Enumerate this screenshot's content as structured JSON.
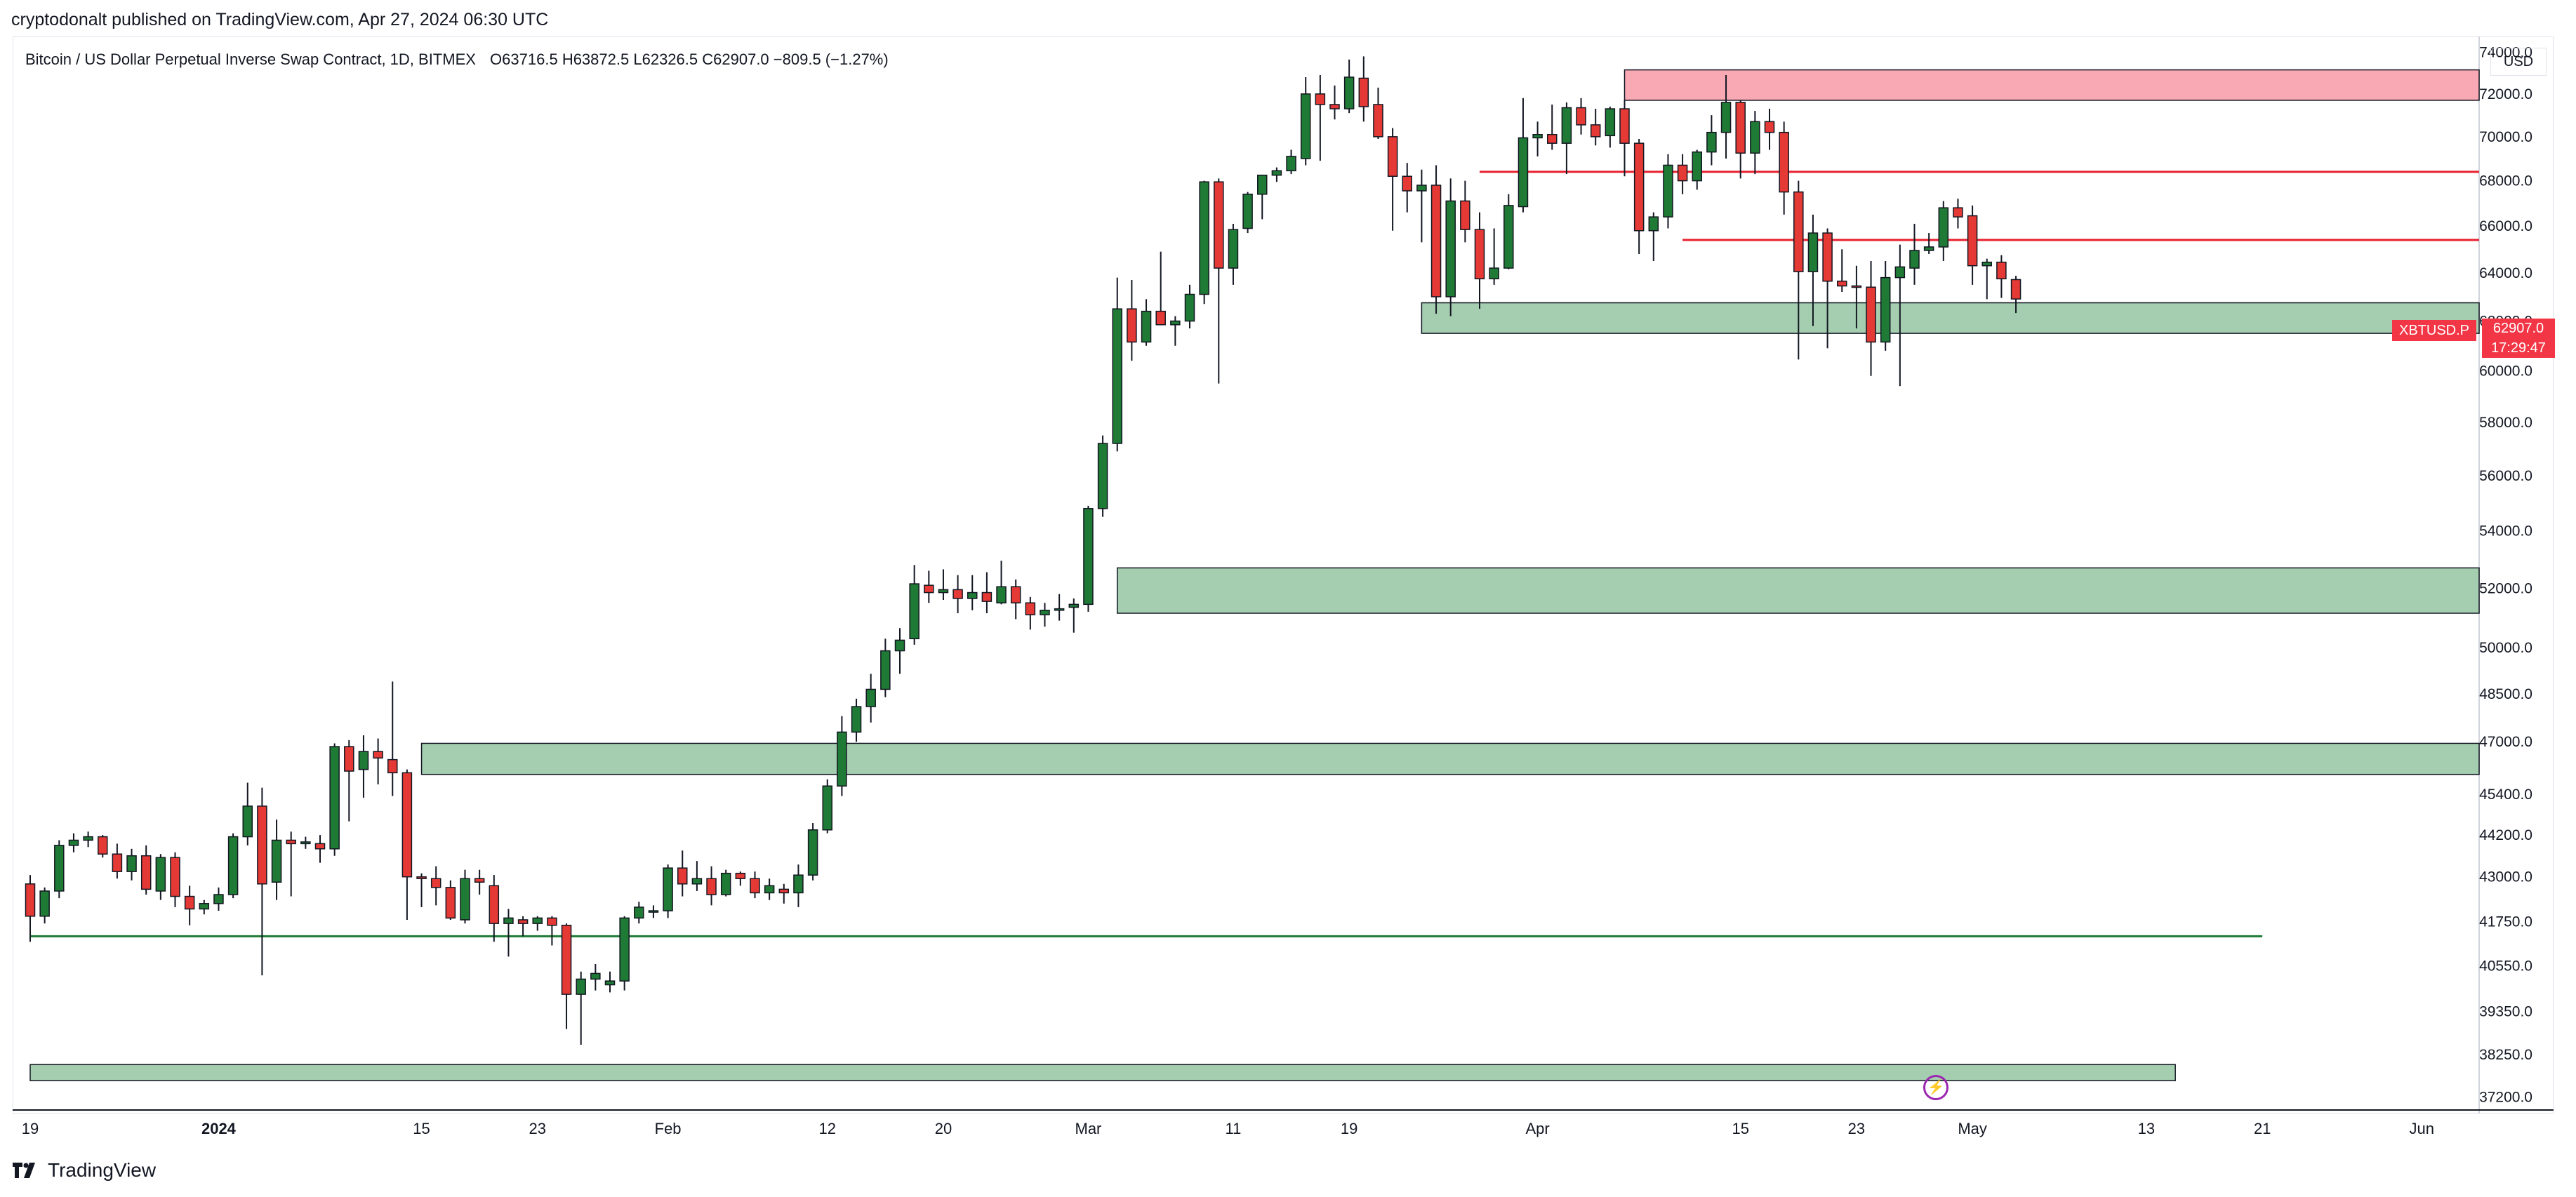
{
  "header": {
    "publisher_line": "cryptodonalt published on TradingView.com, Apr 27, 2024 06:30 UTC"
  },
  "legend": {
    "instrument": "Bitcoin / US Dollar Perpetual Inverse Swap Contract, 1D, BITMEX",
    "open": "O63716.5",
    "high": "H63872.5",
    "low": "L62326.5",
    "close": "C62907.0",
    "change": "−809.5 (−1.27%)"
  },
  "price_scale": {
    "currency": "USD",
    "symbol_tag": "XBTUSD.P",
    "last_price": "62907.0",
    "countdown": "17:29:47"
  },
  "footer": {
    "brand": "TradingView"
  },
  "colors": {
    "up": "#1e7a34",
    "down": "#e53935",
    "zone_green": "#a5cdb0",
    "zone_red": "#f9a9b4",
    "line_red": "#e8202e",
    "line_green": "#1e7a34"
  },
  "chart_data": {
    "type": "candlestick",
    "y_scale": "log",
    "ylim": [
      37000,
      74500
    ],
    "y_ticks": [
      "74000.0",
      "72000.0",
      "70000.0",
      "68000.0",
      "66000.0",
      "64000.0",
      "62000.0",
      "60000.0",
      "58000.0",
      "56000.0",
      "54000.0",
      "52000.0",
      "50000.0",
      "48500.0",
      "47000.0",
      "45400.0",
      "44200.0",
      "43000.0",
      "41750.0",
      "40550.0",
      "39350.0",
      "38250.0",
      "37200.0"
    ],
    "x_ticks": [
      {
        "label": "19",
        "day": 0
      },
      {
        "label": "2024",
        "day": 13,
        "bold": true
      },
      {
        "label": "15",
        "day": 27
      },
      {
        "label": "23",
        "day": 35
      },
      {
        "label": "Feb",
        "day": 44
      },
      {
        "label": "12",
        "day": 55
      },
      {
        "label": "20",
        "day": 63
      },
      {
        "label": "Mar",
        "day": 73
      },
      {
        "label": "11",
        "day": 83
      },
      {
        "label": "19",
        "day": 91
      },
      {
        "label": "Apr",
        "day": 104
      },
      {
        "label": "15",
        "day": 118
      },
      {
        "label": "23",
        "day": 126
      },
      {
        "label": "May",
        "day": 134
      },
      {
        "label": "13",
        "day": 146
      },
      {
        "label": "21",
        "day": 154
      },
      {
        "label": "Jun",
        "day": 165
      }
    ],
    "candles": [
      [
        42800,
        43050,
        41200,
        41900
      ],
      [
        41900,
        42700,
        41700,
        42600
      ],
      [
        42600,
        44050,
        42400,
        43900
      ],
      [
        43900,
        44250,
        43700,
        44050
      ],
      [
        44050,
        44300,
        43850,
        44150
      ],
      [
        44150,
        44200,
        43550,
        43650
      ],
      [
        43650,
        43950,
        42950,
        43150
      ],
      [
        43150,
        43800,
        42900,
        43600
      ],
      [
        43600,
        43900,
        42500,
        42650
      ],
      [
        42600,
        43650,
        42350,
        43550
      ],
      [
        43550,
        43700,
        42150,
        42450
      ],
      [
        42450,
        42750,
        41650,
        42100
      ],
      [
        42100,
        42350,
        41950,
        42250
      ],
      [
        42250,
        42700,
        42050,
        42500
      ],
      [
        42500,
        44250,
        42400,
        44150
      ],
      [
        44150,
        45750,
        43900,
        45050
      ],
      [
        45050,
        45600,
        40300,
        42800
      ],
      [
        42850,
        44650,
        42350,
        44050
      ],
      [
        44050,
        44300,
        42450,
        43950
      ],
      [
        43950,
        44150,
        43800,
        44000
      ],
      [
        43950,
        44200,
        43400,
        43800
      ],
      [
        43800,
        46950,
        43600,
        46850
      ],
      [
        46850,
        47050,
        44600,
        46100
      ],
      [
        46150,
        47200,
        45300,
        46700
      ],
      [
        46700,
        47100,
        45700,
        46500
      ],
      [
        46450,
        48900,
        45350,
        46050
      ],
      [
        46050,
        46150,
        41800,
        43000
      ],
      [
        43000,
        43100,
        42150,
        42950
      ],
      [
        42950,
        43300,
        42200,
        42700
      ],
      [
        42700,
        42900,
        41800,
        41850
      ],
      [
        41800,
        43200,
        41700,
        42950
      ],
      [
        42950,
        43200,
        42500,
        42850
      ],
      [
        42750,
        43050,
        41200,
        41700
      ],
      [
        41700,
        42100,
        40800,
        41850
      ],
      [
        41800,
        41900,
        41350,
        41700
      ],
      [
        41700,
        41900,
        41500,
        41850
      ],
      [
        41850,
        41900,
        41100,
        41650
      ],
      [
        41650,
        41700,
        38900,
        39800
      ],
      [
        39800,
        40400,
        38500,
        40200
      ],
      [
        40200,
        40600,
        39900,
        40350
      ],
      [
        40050,
        40400,
        39850,
        40150
      ],
      [
        40150,
        41900,
        39900,
        41850
      ],
      [
        41850,
        42300,
        41700,
        42150
      ],
      [
        42050,
        42200,
        41850,
        42050
      ],
      [
        42050,
        43350,
        41850,
        43250
      ],
      [
        43250,
        43750,
        42450,
        42800
      ],
      [
        42800,
        43450,
        42600,
        42950
      ],
      [
        42950,
        43300,
        42200,
        42500
      ],
      [
        42500,
        43200,
        42450,
        43100
      ],
      [
        43100,
        43150,
        42750,
        42950
      ],
      [
        42950,
        43150,
        42400,
        42550
      ],
      [
        42550,
        42950,
        42350,
        42750
      ],
      [
        42650,
        42800,
        42250,
        42550
      ],
      [
        42550,
        43350,
        42150,
        43050
      ],
      [
        43050,
        44550,
        42900,
        44350
      ],
      [
        44350,
        45850,
        44250,
        45650
      ],
      [
        45650,
        47800,
        45350,
        47300
      ],
      [
        47300,
        48350,
        47000,
        48100
      ],
      [
        48100,
        49150,
        47600,
        48650
      ],
      [
        48650,
        50300,
        48400,
        49900
      ],
      [
        49900,
        50650,
        49150,
        50250
      ],
      [
        50300,
        52800,
        50100,
        52150
      ],
      [
        52100,
        52600,
        51500,
        51850
      ],
      [
        51850,
        52650,
        51600,
        51950
      ],
      [
        51950,
        52450,
        51150,
        51650
      ],
      [
        51650,
        52450,
        51250,
        51850
      ],
      [
        51850,
        52550,
        51150,
        51550
      ],
      [
        51500,
        52950,
        51450,
        52050
      ],
      [
        52050,
        52300,
        50950,
        51500
      ],
      [
        51500,
        51700,
        50600,
        51100
      ],
      [
        51100,
        51500,
        50700,
        51250
      ],
      [
        51250,
        51800,
        50900,
        51300
      ],
      [
        51350,
        51650,
        50500,
        51450
      ],
      [
        51450,
        54900,
        51200,
        54800
      ],
      [
        54800,
        57500,
        54500,
        57200
      ],
      [
        57200,
        63800,
        56900,
        62500
      ],
      [
        62500,
        63700,
        60400,
        61150
      ],
      [
        61150,
        62900,
        61000,
        62400
      ],
      [
        62400,
        64900,
        62000,
        61850
      ],
      [
        61850,
        62200,
        61000,
        62000
      ],
      [
        62000,
        63500,
        61700,
        63100
      ],
      [
        63100,
        68000,
        62700,
        67950
      ],
      [
        67950,
        68100,
        59500,
        64200
      ],
      [
        64200,
        66100,
        63500,
        65850
      ],
      [
        65900,
        67500,
        65700,
        67400
      ],
      [
        67400,
        68200,
        66300,
        68250
      ],
      [
        68250,
        68600,
        67950,
        68450
      ],
      [
        68450,
        69400,
        68300,
        69100
      ],
      [
        69000,
        72800,
        68700,
        72000
      ],
      [
        72000,
        72900,
        68900,
        71500
      ],
      [
        71500,
        72400,
        70800,
        71300
      ],
      [
        71300,
        73650,
        71100,
        72800
      ],
      [
        72750,
        73800,
        70700,
        71400
      ],
      [
        71500,
        72300,
        69900,
        70000
      ],
      [
        70000,
        70400,
        65800,
        68200
      ],
      [
        68200,
        68800,
        66600,
        67550
      ],
      [
        67550,
        68500,
        65300,
        67800
      ],
      [
        67800,
        68700,
        62300,
        63000
      ],
      [
        63000,
        68100,
        62200,
        67100
      ],
      [
        67100,
        68000,
        65300,
        65850
      ],
      [
        65850,
        66600,
        62500,
        63750
      ],
      [
        63750,
        65900,
        63500,
        64200
      ],
      [
        64200,
        67400,
        64150,
        66900
      ],
      [
        66850,
        71800,
        66600,
        69950
      ],
      [
        69950,
        70700,
        69100,
        70100
      ],
      [
        70100,
        71500,
        69400,
        69700
      ],
      [
        69700,
        71600,
        68300,
        71350
      ],
      [
        71350,
        71800,
        70100,
        70550
      ],
      [
        70550,
        71300,
        69600,
        70000
      ],
      [
        70050,
        71400,
        69500,
        71300
      ],
      [
        71300,
        71700,
        68200,
        69700
      ],
      [
        69700,
        69900,
        64800,
        65800
      ],
      [
        65800,
        66600,
        64500,
        66400
      ],
      [
        66400,
        69200,
        65900,
        68700
      ],
      [
        68700,
        69200,
        67400,
        68000
      ],
      [
        68000,
        69400,
        67600,
        69300
      ],
      [
        69300,
        71000,
        68700,
        70200
      ],
      [
        70200,
        72900,
        69000,
        71600
      ],
      [
        71600,
        71700,
        68100,
        69250
      ],
      [
        69250,
        71200,
        68300,
        70700
      ],
      [
        70700,
        71300,
        69400,
        70200
      ],
      [
        70200,
        70700,
        66500,
        67500
      ],
      [
        67500,
        68000,
        60450,
        64050
      ],
      [
        64050,
        66500,
        61800,
        65700
      ],
      [
        65700,
        65900,
        60900,
        63650
      ],
      [
        63650,
        65000,
        63200,
        63450
      ],
      [
        63450,
        64300,
        61700,
        63400
      ],
      [
        63400,
        64500,
        59800,
        61150
      ],
      [
        61150,
        64500,
        60800,
        63800
      ],
      [
        63800,
        65200,
        59400,
        64250
      ],
      [
        64200,
        66100,
        63500,
        64950
      ],
      [
        64950,
        65700,
        64800,
        65100
      ],
      [
        65100,
        67100,
        64500,
        66800
      ],
      [
        66800,
        67200,
        65900,
        66400
      ],
      [
        66450,
        66900,
        63500,
        64300
      ],
      [
        64300,
        64600,
        62900,
        64450
      ],
      [
        64450,
        64750,
        62950,
        63750
      ],
      [
        63716.5,
        63872.5,
        62326.5,
        62907
      ]
    ],
    "zones": [
      {
        "kind": "supply",
        "start_day": 110,
        "end_day": 176,
        "low": 71700,
        "high": 73150
      },
      {
        "kind": "demand",
        "start_day": 96,
        "end_day": 176,
        "low": 61500,
        "high": 62750
      },
      {
        "kind": "demand",
        "start_day": 75,
        "end_day": 200,
        "low": 51150,
        "high": 52700
      },
      {
        "kind": "demand",
        "start_day": 27,
        "end_day": 200,
        "low": 46000,
        "high": 46950
      },
      {
        "kind": "demand",
        "start_day": 0,
        "end_day": 148,
        "low": 37600,
        "high": 38000
      }
    ],
    "lines": [
      {
        "color": "red",
        "start_day": 100,
        "end_day": 174,
        "price": 68400
      },
      {
        "color": "red",
        "start_day": 114,
        "end_day": 174,
        "price": 65400
      },
      {
        "color": "green",
        "start_day": 0,
        "end_day": 154,
        "price": 41350
      }
    ]
  }
}
